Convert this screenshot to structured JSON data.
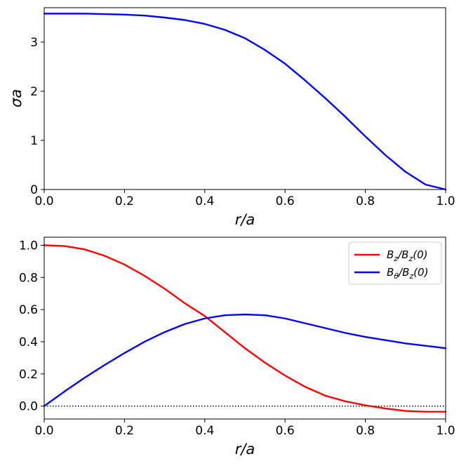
{
  "chart_data": [
    {
      "type": "line",
      "xlabel": "r/a",
      "ylabel": "σa",
      "xlim": [
        0.0,
        1.0
      ],
      "ylim": [
        0,
        3.7
      ],
      "xticks": [
        "0.0",
        "0.2",
        "0.4",
        "0.6",
        "0.8",
        "1.0"
      ],
      "yticks": [
        "0",
        "1",
        "2",
        "3"
      ],
      "grid": false,
      "series": [
        {
          "color": "#0000ff",
          "x": [
            0.0,
            0.05,
            0.1,
            0.15,
            0.2,
            0.25,
            0.3,
            0.35,
            0.4,
            0.45,
            0.5,
            0.55,
            0.6,
            0.65,
            0.7,
            0.75,
            0.8,
            0.85,
            0.9,
            0.95,
            1.0
          ],
          "y": [
            3.58,
            3.58,
            3.58,
            3.57,
            3.56,
            3.54,
            3.5,
            3.45,
            3.37,
            3.25,
            3.08,
            2.84,
            2.56,
            2.22,
            1.86,
            1.48,
            1.08,
            0.7,
            0.36,
            0.1,
            0.0
          ]
        }
      ]
    },
    {
      "type": "line",
      "xlabel": "r/a",
      "ylabel": "",
      "xlim": [
        0.0,
        1.0
      ],
      "ylim": [
        -0.08,
        1.05
      ],
      "xticks": [
        "0.0",
        "0.2",
        "0.4",
        "0.6",
        "0.8",
        "1.0"
      ],
      "yticks": [
        "0.0",
        "0.2",
        "0.4",
        "0.6",
        "0.8",
        "1.0"
      ],
      "grid": false,
      "legend": "top-right",
      "reference_line": {
        "y": 0.0,
        "style": "dotted",
        "color": "#000000"
      },
      "series": [
        {
          "name": "B_z/B_z(0)",
          "color": "#ff0000",
          "x": [
            0.0,
            0.05,
            0.1,
            0.15,
            0.2,
            0.25,
            0.3,
            0.35,
            0.4,
            0.45,
            0.5,
            0.55,
            0.6,
            0.65,
            0.7,
            0.75,
            0.8,
            0.85,
            0.9,
            0.95,
            1.0
          ],
          "y": [
            1.0,
            0.995,
            0.975,
            0.935,
            0.88,
            0.81,
            0.73,
            0.64,
            0.56,
            0.46,
            0.36,
            0.27,
            0.19,
            0.12,
            0.065,
            0.03,
            0.005,
            -0.015,
            -0.03,
            -0.035,
            -0.035
          ]
        },
        {
          "name": "B_θ/B_z(0)",
          "color": "#0000ff",
          "x": [
            0.0,
            0.05,
            0.1,
            0.15,
            0.2,
            0.25,
            0.3,
            0.35,
            0.4,
            0.45,
            0.5,
            0.55,
            0.6,
            0.65,
            0.7,
            0.75,
            0.8,
            0.85,
            0.9,
            0.95,
            1.0
          ],
          "y": [
            0.0,
            0.09,
            0.175,
            0.255,
            0.33,
            0.4,
            0.46,
            0.51,
            0.545,
            0.565,
            0.57,
            0.565,
            0.545,
            0.515,
            0.485,
            0.455,
            0.43,
            0.41,
            0.39,
            0.375,
            0.36
          ]
        }
      ]
    }
  ],
  "legend_labels": [
    {
      "main": "B",
      "sub1": "z",
      "mid": "/B",
      "sub2": "z",
      "tail": "(0)"
    },
    {
      "main": "B",
      "sub1": "θ",
      "mid": "/B",
      "sub2": "z",
      "tail": "(0)"
    }
  ]
}
